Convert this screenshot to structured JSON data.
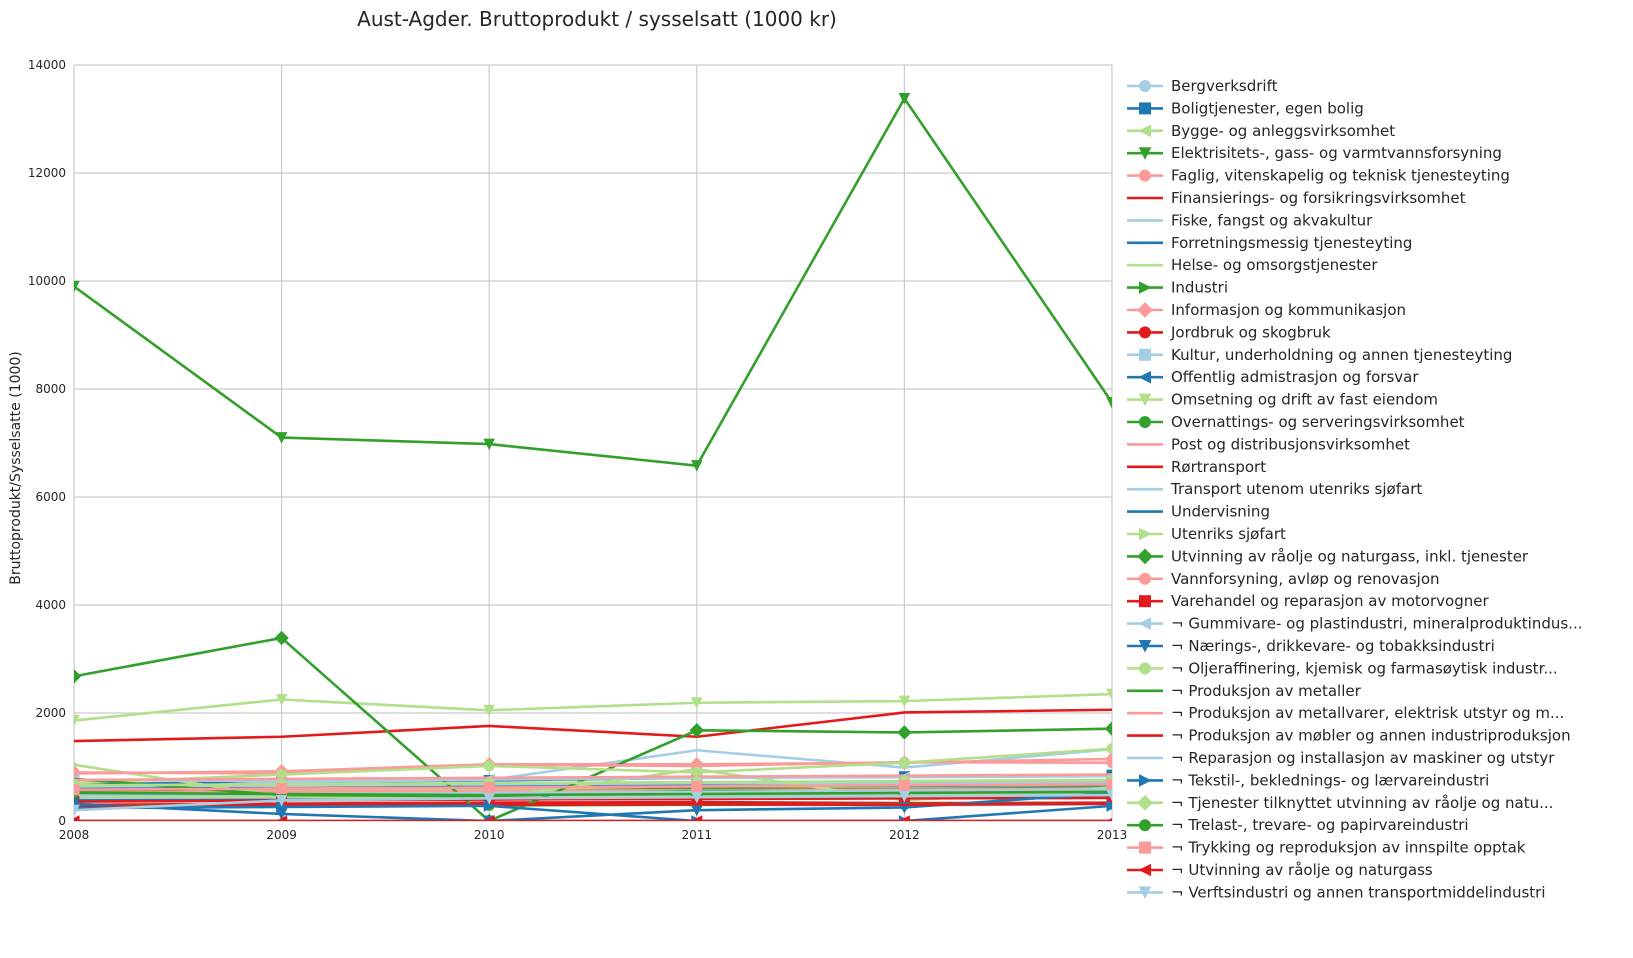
{
  "chart_data": {
    "type": "line",
    "title": "Aust-Agder. Bruttoprodukt / sysselsatt (1000 kr)",
    "xlabel": "",
    "ylabel": "Bruttoprodukt/Sysselsatte (1000)",
    "x": [
      "2008",
      "2009",
      "2010",
      "2011",
      "2012",
      "2013"
    ],
    "xlim": [
      2008,
      2013
    ],
    "ylim": [
      0,
      14000
    ],
    "yticks": [
      "0",
      "2000",
      "4000",
      "6000",
      "8000",
      "10000",
      "12000",
      "14000"
    ],
    "grid": true,
    "legend_position": "right",
    "series": [
      {
        "name": "Bergverksdrift",
        "color": "#a6cee3",
        "marker": "circle",
        "values": [
          300,
          280,
          320,
          300,
          290,
          310
        ]
      },
      {
        "name": "Boligtjenester, egen bolig",
        "color": "#1f78b4",
        "marker": "square",
        "values": [
          680,
          720,
          750,
          800,
          820,
          850
        ]
      },
      {
        "name": "Bygge- og anleggsvirksomhet",
        "color": "#b2df8a",
        "marker": "triangle-left",
        "values": [
          560,
          580,
          600,
          620,
          640,
          660
        ]
      },
      {
        "name": "Elektrisitets-, gass- og varmtvannsforsyning",
        "color": "#33a02c",
        "marker": "triangle-down",
        "values": [
          9900,
          7100,
          6980,
          6580,
          13380,
          7750
        ]
      },
      {
        "name": "Faglig, vitenskapelig og teknisk tjenesteyting",
        "color": "#fb9a99",
        "marker": "circle",
        "values": [
          620,
          650,
          660,
          690,
          700,
          720
        ]
      },
      {
        "name": "Finansierings- og forsikringsvirksomhet",
        "color": "#e31a1c",
        "marker": "none",
        "values": [
          1480,
          1560,
          1760,
          1560,
          2010,
          2060
        ]
      },
      {
        "name": "Fiske, fangst og akvakultur",
        "color": "#a6cee3",
        "marker": "none",
        "values": [
          560,
          720,
          760,
          1310,
          990,
          1330
        ]
      },
      {
        "name": "Forretningsmessig tjenesteyting",
        "color": "#1f78b4",
        "marker": "none",
        "values": [
          460,
          470,
          500,
          520,
          530,
          540
        ]
      },
      {
        "name": "Helse- og omsorgstjenester",
        "color": "#b2df8a",
        "marker": "none",
        "values": [
          440,
          450,
          460,
          470,
          480,
          490
        ]
      },
      {
        "name": "Industri",
        "color": "#33a02c",
        "marker": "triangle-right",
        "values": [
          560,
          520,
          540,
          600,
          590,
          620
        ]
      },
      {
        "name": "Informasjon og kommunikasjon",
        "color": "#fb9a99",
        "marker": "diamond",
        "values": [
          880,
          920,
          1050,
          1050,
          1080,
          1150
        ]
      },
      {
        "name": "Jordbruk og skogbruk",
        "color": "#e31a1c",
        "marker": "circle",
        "values": [
          300,
          320,
          340,
          350,
          330,
          340
        ]
      },
      {
        "name": "Kultur, underholdning og annen tjenesteyting",
        "color": "#a6cee3",
        "marker": "square",
        "values": [
          400,
          410,
          420,
          430,
          440,
          450
        ]
      },
      {
        "name": "Offentlig admistrasjon og forsvar",
        "color": "#1f78b4",
        "marker": "triangle-left",
        "values": [
          620,
          600,
          640,
          660,
          650,
          670
        ]
      },
      {
        "name": "Omsetning og drift av fast eiendom",
        "color": "#b2df8a",
        "marker": "triangle-down",
        "values": [
          1860,
          2250,
          2050,
          2190,
          2220,
          2350
        ]
      },
      {
        "name": "Overnattings- og serveringsvirksomhet",
        "color": "#33a02c",
        "marker": "circle",
        "values": [
          280,
          270,
          290,
          300,
          310,
          320
        ]
      },
      {
        "name": "Post og distribusjonsvirksomhet",
        "color": "#fb9a99",
        "marker": "none",
        "values": [
          520,
          540,
          560,
          570,
          580,
          600
        ]
      },
      {
        "name": "Rørtransport",
        "color": "#e31a1c",
        "marker": "none",
        "values": [
          0,
          0,
          0,
          0,
          0,
          0
        ]
      },
      {
        "name": "Transport utenom utenriks sjøfart",
        "color": "#a6cee3",
        "marker": "none",
        "values": [
          640,
          660,
          680,
          700,
          690,
          710
        ]
      },
      {
        "name": "Undervisning",
        "color": "#1f78b4",
        "marker": "none",
        "values": [
          380,
          390,
          400,
          410,
          420,
          430
        ]
      },
      {
        "name": "Utenriks sjøfart",
        "color": "#b2df8a",
        "marker": "triangle-right",
        "values": [
          1040,
          450,
          420,
          960,
          380,
          620
        ]
      },
      {
        "name": "Utvinning av råolje og naturgass, inkl. tjenester",
        "color": "#33a02c",
        "marker": "diamond",
        "values": [
          2680,
          3390,
          0,
          1680,
          1640,
          1710
        ]
      },
      {
        "name": "Vannforsyning, avløp og renovasjon",
        "color": "#fb9a99",
        "marker": "circle",
        "values": [
          900,
          880,
          1040,
          1020,
          1090,
          1080
        ]
      },
      {
        "name": "Varehandel og reparasjon av motorvogner",
        "color": "#e31a1c",
        "marker": "square",
        "values": [
          360,
          380,
          400,
          410,
          420,
          430
        ]
      },
      {
        "name": "¬ Gummivare- og plastindustri, mineralproduktindus...",
        "color": "#a6cee3",
        "marker": "triangle-left",
        "values": [
          760,
          740,
          770,
          800,
          810,
          830
        ]
      },
      {
        "name": "¬ Nærings-, drikkevare- og tobakksindustri",
        "color": "#1f78b4",
        "marker": "triangle-down",
        "values": [
          320,
          130,
          0,
          200,
          250,
          520
        ]
      },
      {
        "name": "¬ Oljeraffinering, kjemisk og farmasøytisk industr...",
        "color": "#b2df8a",
        "marker": "circle",
        "values": [
          700,
          860,
          1020,
          900,
          1080,
          1340
        ]
      },
      {
        "name": "¬ Produksjon av metaller",
        "color": "#33a02c",
        "marker": "none",
        "values": [
          780,
          480,
          460,
          560,
          540,
          560
        ]
      },
      {
        "name": "¬ Produksjon av metallvarer, elektrisk utstyr og m...",
        "color": "#fb9a99",
        "marker": "none",
        "values": [
          760,
          780,
          800,
          820,
          840,
          860
        ]
      },
      {
        "name": "¬ Produksjon av møbler og annen industriproduksjon",
        "color": "#e31a1c",
        "marker": "none",
        "values": [
          260,
          280,
          300,
          310,
          300,
          320
        ]
      },
      {
        "name": "¬ Reparasjon og installasjon av maskiner og utstyr",
        "color": "#a6cee3",
        "marker": "none",
        "values": [
          480,
          500,
          520,
          540,
          560,
          580
        ]
      },
      {
        "name": "¬ Tekstil-, beklednings- og lærvareindustri",
        "color": "#1f78b4",
        "marker": "triangle-right",
        "values": [
          240,
          260,
          280,
          0,
          0,
          280
        ]
      },
      {
        "name": "¬ Tjenester tilknyttet utvinning av råolje og natu...",
        "color": "#b2df8a",
        "marker": "diamond",
        "values": [
          660,
          680,
          700,
          720,
          740,
          760
        ]
      },
      {
        "name": "¬ Trelast-, trevare- og papirvareindustri",
        "color": "#33a02c",
        "marker": "circle",
        "values": [
          520,
          500,
          480,
          500,
          520,
          540
        ]
      },
      {
        "name": "¬ Trykking og reproduksjon av innspilte opptak",
        "color": "#fb9a99",
        "marker": "square",
        "values": [
          580,
          600,
          620,
          640,
          660,
          680
        ]
      },
      {
        "name": "¬ Utvinning av råolje og naturgass",
        "color": "#e31a1c",
        "marker": "triangle-left",
        "values": [
          0,
          0,
          0,
          0,
          0,
          0
        ]
      },
      {
        "name": "¬ Verftsindustri og annen transportmiddelindustri",
        "color": "#a6cee3",
        "marker": "triangle-down",
        "values": [
          200,
          380,
          420,
          440,
          460,
          480
        ]
      }
    ]
  }
}
